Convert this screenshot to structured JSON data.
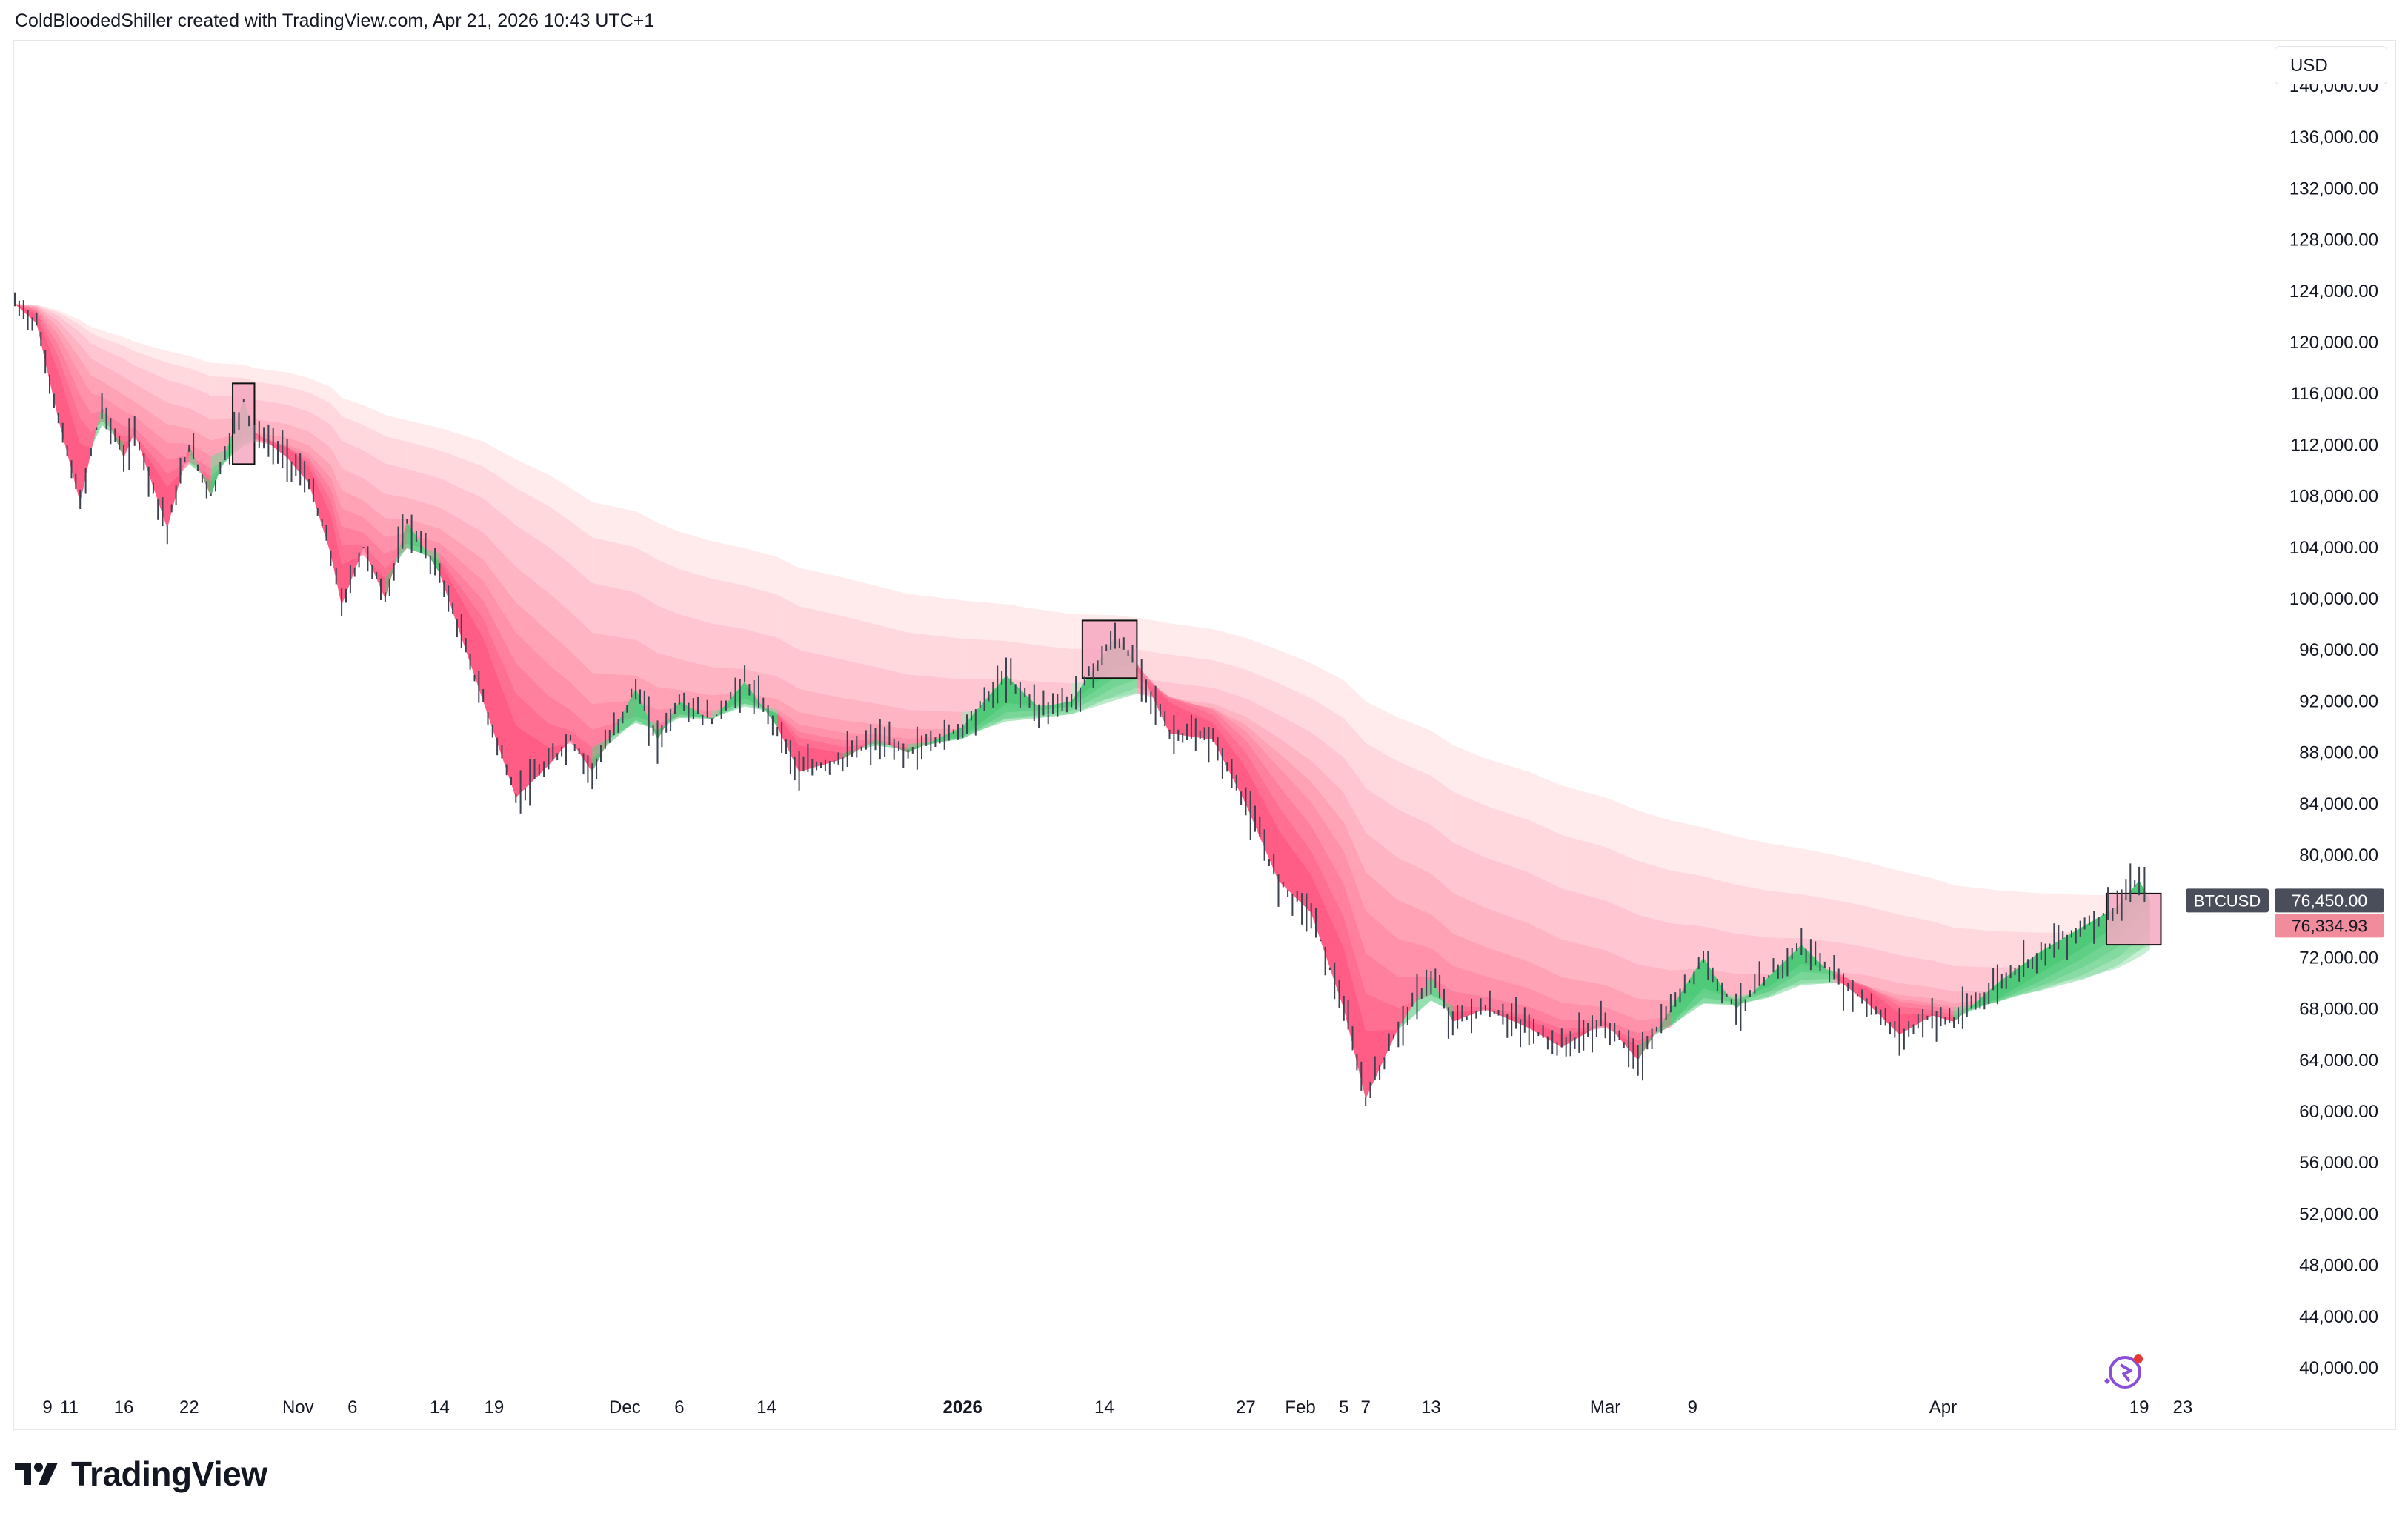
{
  "header": {
    "text": "ColdBloodedShiller created with TradingView.com, Apr 21, 2026 10:43 UTC+1"
  },
  "brand": {
    "name": "TradingView"
  },
  "currency": "USD",
  "colors": {
    "ribbon_above": "#ff4f7b",
    "ribbon_below": "#3fc46e",
    "ribbon_blue": "#7fa8d8",
    "highlight_box": "#f6a8c2",
    "symbol_badge": "#4a4e5a",
    "last_price_badge": "#f08c9b",
    "candle": "#3d4250"
  },
  "chart_data": {
    "type": "line",
    "symbol": "BTCUSD",
    "last_price_label": "76,450.00",
    "second_price_label": "76,334.93",
    "y_axis": {
      "ylim": [
        37000,
        147000
      ],
      "tick_labels": [
        "140,000.00",
        "136,000.00",
        "132,000.00",
        "128,000.00",
        "124,000.00",
        "120,000.00",
        "116,000.00",
        "112,000.00",
        "108,000.00",
        "104,000.00",
        "100,000.00",
        "96,000.00",
        "92,000.00",
        "88,000.00",
        "84,000.00",
        "80,000.00",
        "72,000.00",
        "68,000.00",
        "64,000.00",
        "60,000.00",
        "56,000.00",
        "52,000.00",
        "48,000.00",
        "44,000.00",
        "40,000.00"
      ],
      "tick_values": [
        140000,
        136000,
        132000,
        128000,
        124000,
        120000,
        116000,
        112000,
        108000,
        104000,
        100000,
        96000,
        92000,
        88000,
        84000,
        80000,
        72000,
        68000,
        64000,
        60000,
        56000,
        52000,
        48000,
        44000,
        40000
      ]
    },
    "x_axis": {
      "tick_labels": [
        "9",
        "11",
        "16",
        "22",
        "Nov",
        "6",
        "14",
        "19",
        "Dec",
        "6",
        "14",
        "2026",
        "14",
        "27",
        "Feb",
        "5",
        "7",
        "13",
        "Mar",
        "9",
        "Apr",
        "19",
        "23"
      ],
      "tick_dates": [
        "2025-10-09",
        "2025-10-11",
        "2025-10-16",
        "2025-10-22",
        "2025-11-01",
        "2025-11-06",
        "2025-11-14",
        "2025-11-19",
        "2025-12-01",
        "2025-12-06",
        "2025-12-14",
        "2026-01-01",
        "2026-01-14",
        "2026-01-27",
        "2026-02-01",
        "2026-02-05",
        "2026-02-07",
        "2026-02-13",
        "2026-03-01",
        "2026-03-09",
        "2026-04-01",
        "2026-04-19",
        "2026-04-23"
      ],
      "bold_labels": [
        "2026"
      ]
    },
    "price_series": {
      "x": [
        "2025-10-06",
        "2025-10-08",
        "2025-10-10",
        "2025-10-12",
        "2025-10-13",
        "2025-10-14",
        "2025-10-16",
        "2025-10-17",
        "2025-10-20",
        "2025-10-22",
        "2025-10-24",
        "2025-10-27",
        "2025-10-28",
        "2025-10-31",
        "2025-11-02",
        "2025-11-04",
        "2025-11-05",
        "2025-11-07",
        "2025-11-09",
        "2025-11-11",
        "2025-11-14",
        "2025-11-18",
        "2025-11-21",
        "2025-11-24",
        "2025-11-26",
        "2025-11-28",
        "2025-12-02",
        "2025-12-04",
        "2025-12-06",
        "2025-12-09",
        "2025-12-12",
        "2025-12-15",
        "2025-12-17",
        "2025-12-21",
        "2025-12-24",
        "2025-12-27",
        "2026-01-01",
        "2026-01-05",
        "2026-01-08",
        "2026-01-11",
        "2026-01-15",
        "2026-01-17",
        "2026-01-20",
        "2026-01-24",
        "2026-01-27",
        "2026-01-30",
        "2026-02-02",
        "2026-02-05",
        "2026-02-07",
        "2026-02-10",
        "2026-02-13",
        "2026-02-15",
        "2026-02-18",
        "2026-02-22",
        "2026-02-25",
        "2026-03-01",
        "2026-03-04",
        "2026-03-07",
        "2026-03-10",
        "2026-03-13",
        "2026-03-16",
        "2026-03-19",
        "2026-03-22",
        "2026-03-25",
        "2026-03-28",
        "2026-03-31",
        "2026-04-02",
        "2026-04-06",
        "2026-04-10",
        "2026-04-14",
        "2026-04-17",
        "2026-04-19",
        "2026-04-20"
      ],
      "y": [
        123000,
        121500,
        114000,
        107500,
        111500,
        115000,
        111000,
        113000,
        105500,
        112000,
        108000,
        115500,
        113000,
        111000,
        109000,
        103500,
        99500,
        104000,
        100000,
        106000,
        102000,
        92000,
        84500,
        87000,
        89000,
        86500,
        93000,
        89000,
        92000,
        90500,
        93500,
        90000,
        86500,
        87500,
        89000,
        88000,
        90000,
        94000,
        91500,
        92000,
        97000,
        95000,
        89500,
        89000,
        84000,
        78000,
        75500,
        68000,
        61000,
        66500,
        70500,
        67000,
        68000,
        66500,
        65000,
        67000,
        64000,
        68000,
        72000,
        68000,
        70500,
        73000,
        70500,
        68500,
        66000,
        67500,
        67000,
        70000,
        72500,
        74500,
        76000,
        78000,
        76450
      ]
    },
    "highlight_boxes": [
      {
        "x0": "2025-10-26",
        "x1": "2025-10-28",
        "y0": 110500,
        "y1": 116800
      },
      {
        "x0": "2026-01-12",
        "x1": "2026-01-17",
        "y0": 93800,
        "y1": 98300
      },
      {
        "x0": "2026-04-16",
        "x1": "2026-04-21",
        "y0": 73000,
        "y1": 77000
      }
    ]
  }
}
